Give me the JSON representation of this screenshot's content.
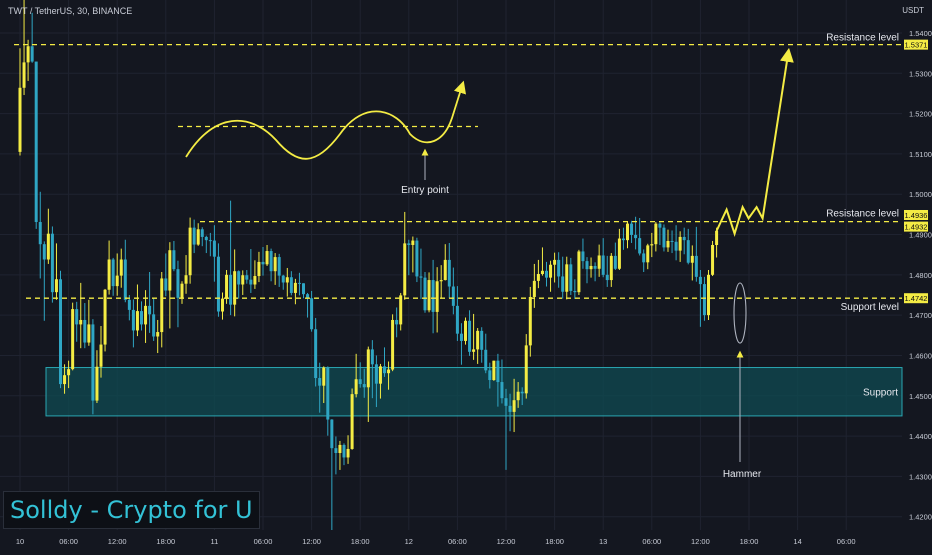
{
  "header": {
    "symbol": "TWT / TetherUS, 30, BINANCE",
    "currency": "USDT"
  },
  "brand": {
    "text": "Solldy - Crypto for U"
  },
  "colors": {
    "background": "#141720",
    "up": "#f4ec44",
    "down": "#2fa6c4",
    "annotation": "#f4ec44",
    "support_zone_fill": "#0f4b52",
    "support_zone_border": "#2aa7b2",
    "axis_text": "#c8ccd6"
  },
  "chart_data": {
    "type": "candlestick",
    "title": "TWT / TetherUS, 30, BINANCE",
    "y_axis": {
      "ticks": [
        1.42,
        1.43,
        1.44,
        1.45,
        1.46,
        1.47,
        1.48,
        1.49,
        1.5,
        1.51,
        1.52,
        1.53,
        1.54
      ],
      "tick_labels": [
        "1.4200",
        "1.4300",
        "1.4400",
        "1.4500",
        "1.4600",
        "1.4700",
        "1.4800",
        "1.4900",
        "1.5000",
        "1.5100",
        "1.5200",
        "1.5300",
        "1.5400"
      ],
      "range": [
        1.4167,
        1.5447
      ]
    },
    "x_axis": {
      "tick_labels": [
        "10",
        "06:00",
        "12:00",
        "18:00",
        "11",
        "06:00",
        "12:00",
        "18:00",
        "12",
        "06:00",
        "12:00",
        "18:00",
        "13",
        "06:00",
        "12:00",
        "18:00",
        "14",
        "06:00"
      ],
      "tick_positions": [
        0,
        12,
        24,
        36,
        48,
        60,
        72,
        84,
        96,
        108,
        120,
        132,
        144,
        156,
        168,
        180,
        192,
        204
      ],
      "unit": "30-minute bars"
    },
    "price_tags": [
      {
        "value": 1.5371,
        "label": "1.5371"
      },
      {
        "value": 1.4936,
        "label": "1.4936"
      },
      {
        "value": 1.4932,
        "label": "1.4932"
      },
      {
        "value": 1.4742,
        "label": "1.4742"
      }
    ],
    "levels": [
      {
        "label": "Resistance level",
        "value": 1.5371
      },
      {
        "label": "Resistance level",
        "value": 1.4932
      },
      {
        "label": "Support level",
        "value": 1.4742
      }
    ],
    "support_zone": {
      "label": "Support",
      "from": 1.445,
      "to": 1.457
    },
    "annotations": [
      {
        "label": "Entry point"
      },
      {
        "label": "Hammer"
      }
    ],
    "candles": [
      [
        1.5105,
        1.5362,
        1.5096,
        1.5264
      ],
      [
        1.5264,
        1.5486,
        1.5246,
        1.5327
      ],
      [
        1.5327,
        1.5383,
        1.5281,
        1.5367
      ],
      [
        1.5367,
        1.545,
        1.5326,
        1.5329
      ],
      [
        1.5329,
        1.5329,
        1.4914,
        1.4931
      ],
      [
        1.4931,
        1.5006,
        1.4791,
        1.4876
      ],
      [
        1.4876,
        1.4883,
        1.4686,
        1.4838
      ],
      [
        1.4838,
        1.4964,
        1.4827,
        1.4902
      ],
      [
        1.4902,
        1.492,
        1.4731,
        1.4757
      ],
      [
        1.4757,
        1.4878,
        1.4738,
        1.4789
      ],
      [
        1.4789,
        1.481,
        1.4519,
        1.4529
      ],
      [
        1.4529,
        1.4578,
        1.4505,
        1.4551
      ],
      [
        1.4551,
        1.4587,
        1.4519,
        1.4566
      ],
      [
        1.4566,
        1.4731,
        1.4563,
        1.4715
      ],
      [
        1.4715,
        1.4733,
        1.4634,
        1.4677
      ],
      [
        1.4677,
        1.478,
        1.4618,
        1.4688
      ],
      [
        1.4688,
        1.473,
        1.4618,
        1.4632
      ],
      [
        1.4632,
        1.4738,
        1.4624,
        1.4677
      ],
      [
        1.4677,
        1.469,
        1.4454,
        1.4488
      ],
      [
        1.4488,
        1.4613,
        1.4482,
        1.4572
      ],
      [
        1.4572,
        1.4673,
        1.4545,
        1.4627
      ],
      [
        1.4627,
        1.4765,
        1.461,
        1.4763
      ],
      [
        1.4763,
        1.4885,
        1.4751,
        1.4838
      ],
      [
        1.4838,
        1.4842,
        1.4748,
        1.4772
      ],
      [
        1.4772,
        1.4853,
        1.4748,
        1.4798
      ],
      [
        1.4798,
        1.4865,
        1.4768,
        1.4838
      ],
      [
        1.4838,
        1.4887,
        1.4732,
        1.4738
      ],
      [
        1.4738,
        1.475,
        1.4687,
        1.4713
      ],
      [
        1.4713,
        1.4739,
        1.462,
        1.4662
      ],
      [
        1.4662,
        1.4776,
        1.4648,
        1.471
      ],
      [
        1.471,
        1.4734,
        1.4662,
        1.4677
      ],
      [
        1.4677,
        1.4762,
        1.4631,
        1.4723
      ],
      [
        1.4723,
        1.4807,
        1.4656,
        1.4702
      ],
      [
        1.4702,
        1.4741,
        1.4636,
        1.4647
      ],
      [
        1.4647,
        1.4688,
        1.4606,
        1.4658
      ],
      [
        1.4658,
        1.4807,
        1.462,
        1.4791
      ],
      [
        1.4791,
        1.4853,
        1.4747,
        1.4761
      ],
      [
        1.4761,
        1.4881,
        1.4667,
        1.4861
      ],
      [
        1.4861,
        1.4884,
        1.4809,
        1.4814
      ],
      [
        1.4814,
        1.4835,
        1.467,
        1.4743
      ],
      [
        1.4743,
        1.4784,
        1.4728,
        1.4778
      ],
      [
        1.4778,
        1.4849,
        1.4753,
        1.4799
      ],
      [
        1.4799,
        1.4942,
        1.4778,
        1.4917
      ],
      [
        1.4917,
        1.4937,
        1.4854,
        1.4875
      ],
      [
        1.4875,
        1.4928,
        1.4872,
        1.4913
      ],
      [
        1.4913,
        1.4918,
        1.4871,
        1.4894
      ],
      [
        1.4894,
        1.4897,
        1.4854,
        1.4886
      ],
      [
        1.4886,
        1.4904,
        1.4846,
        1.4885
      ],
      [
        1.4885,
        1.4923,
        1.4783,
        1.4845
      ],
      [
        1.4845,
        1.4878,
        1.4696,
        1.4709
      ],
      [
        1.4709,
        1.4756,
        1.4689,
        1.4741
      ],
      [
        1.4741,
        1.4812,
        1.4728,
        1.48
      ],
      [
        1.48,
        1.4984,
        1.47,
        1.4726
      ],
      [
        1.4726,
        1.4863,
        1.4697,
        1.4809
      ],
      [
        1.4809,
        1.4811,
        1.4741,
        1.4776
      ],
      [
        1.4776,
        1.4811,
        1.475,
        1.4799
      ],
      [
        1.4799,
        1.4812,
        1.4778,
        1.4788
      ],
      [
        1.4788,
        1.4864,
        1.4755,
        1.4776
      ],
      [
        1.4776,
        1.4836,
        1.4765,
        1.4797
      ],
      [
        1.4797,
        1.4857,
        1.4782,
        1.4832
      ],
      [
        1.4832,
        1.4869,
        1.4798,
        1.4826
      ],
      [
        1.4826,
        1.4874,
        1.4822,
        1.4859
      ],
      [
        1.4859,
        1.4865,
        1.4784,
        1.4809
      ],
      [
        1.4809,
        1.4854,
        1.4775,
        1.4844
      ],
      [
        1.4844,
        1.4852,
        1.477,
        1.4798
      ],
      [
        1.4798,
        1.48,
        1.4763,
        1.4781
      ],
      [
        1.4781,
        1.4817,
        1.4746,
        1.4794
      ],
      [
        1.4794,
        1.4809,
        1.4749,
        1.4755
      ],
      [
        1.4755,
        1.479,
        1.4727,
        1.478
      ],
      [
        1.478,
        1.4805,
        1.4749,
        1.4779
      ],
      [
        1.4779,
        1.4779,
        1.4742,
        1.4752
      ],
      [
        1.4752,
        1.4755,
        1.4694,
        1.4742
      ],
      [
        1.4742,
        1.476,
        1.4659,
        1.4665
      ],
      [
        1.4665,
        1.4693,
        1.4523,
        1.4544
      ],
      [
        1.4544,
        1.4582,
        1.4458,
        1.4525
      ],
      [
        1.4525,
        1.4573,
        1.4482,
        1.457
      ],
      [
        1.457,
        1.4573,
        1.4401,
        1.4441
      ],
      [
        1.4441,
        1.4442,
        1.4167,
        1.437
      ],
      [
        1.437,
        1.4399,
        1.4305,
        1.4358
      ],
      [
        1.4358,
        1.4388,
        1.4316,
        1.4378
      ],
      [
        1.4378,
        1.4382,
        1.4328,
        1.4347
      ],
      [
        1.4347,
        1.4402,
        1.4331,
        1.4368
      ],
      [
        1.4368,
        1.4518,
        1.4366,
        1.4504
      ],
      [
        1.4504,
        1.4604,
        1.4496,
        1.4541
      ],
      [
        1.4541,
        1.4583,
        1.452,
        1.4529
      ],
      [
        1.4529,
        1.4567,
        1.4495,
        1.4521
      ],
      [
        1.4521,
        1.4622,
        1.4435,
        1.4615
      ],
      [
        1.4615,
        1.4638,
        1.4494,
        1.4578
      ],
      [
        1.4578,
        1.46,
        1.4472,
        1.453
      ],
      [
        1.453,
        1.4579,
        1.4493,
        1.4573
      ],
      [
        1.4573,
        1.462,
        1.4547,
        1.4556
      ],
      [
        1.4556,
        1.4585,
        1.4515,
        1.4565
      ],
      [
        1.4565,
        1.4702,
        1.4561,
        1.4688
      ],
      [
        1.4688,
        1.4719,
        1.4645,
        1.4677
      ],
      [
        1.4677,
        1.4755,
        1.4662,
        1.4749
      ],
      [
        1.4749,
        1.4956,
        1.4738,
        1.4878
      ],
      [
        1.4878,
        1.4887,
        1.4799,
        1.4874
      ],
      [
        1.4874,
        1.4895,
        1.4806,
        1.4885
      ],
      [
        1.4885,
        1.4892,
        1.4782,
        1.4796
      ],
      [
        1.4796,
        1.4865,
        1.474,
        1.4793
      ],
      [
        1.4793,
        1.4807,
        1.4706,
        1.4712
      ],
      [
        1.4712,
        1.4806,
        1.4707,
        1.4787
      ],
      [
        1.4787,
        1.4837,
        1.4655,
        1.4708
      ],
      [
        1.4708,
        1.4819,
        1.4657,
        1.4784
      ],
      [
        1.4784,
        1.4824,
        1.4741,
        1.4787
      ],
      [
        1.4787,
        1.4876,
        1.4786,
        1.4837
      ],
      [
        1.4837,
        1.4879,
        1.4742,
        1.4771
      ],
      [
        1.4771,
        1.4818,
        1.4702,
        1.4723
      ],
      [
        1.4723,
        1.4772,
        1.4636,
        1.4654
      ],
      [
        1.4654,
        1.468,
        1.4577,
        1.4636
      ],
      [
        1.4636,
        1.4694,
        1.4627,
        1.4686
      ],
      [
        1.4686,
        1.4712,
        1.4599,
        1.4609
      ],
      [
        1.4609,
        1.4703,
        1.4589,
        1.4615
      ],
      [
        1.4615,
        1.4668,
        1.4579,
        1.4661
      ],
      [
        1.4661,
        1.467,
        1.4582,
        1.4614
      ],
      [
        1.4614,
        1.4654,
        1.4556,
        1.4563
      ],
      [
        1.4563,
        1.4582,
        1.4518,
        1.4539
      ],
      [
        1.4539,
        1.4587,
        1.4537,
        1.4587
      ],
      [
        1.4587,
        1.4604,
        1.4473,
        1.4534
      ],
      [
        1.4534,
        1.459,
        1.4481,
        1.4494
      ],
      [
        1.4494,
        1.4517,
        1.4316,
        1.4475
      ],
      [
        1.4475,
        1.4505,
        1.4412,
        1.446
      ],
      [
        1.446,
        1.4542,
        1.441,
        1.4489
      ],
      [
        1.4489,
        1.4534,
        1.447,
        1.451
      ],
      [
        1.451,
        1.4521,
        1.4477,
        1.4506
      ],
      [
        1.4506,
        1.4653,
        1.4493,
        1.4625
      ],
      [
        1.4625,
        1.477,
        1.4597,
        1.4745
      ],
      [
        1.4745,
        1.4827,
        1.4718,
        1.4785
      ],
      [
        1.4785,
        1.4837,
        1.4767,
        1.4802
      ],
      [
        1.4802,
        1.4868,
        1.4798,
        1.481
      ],
      [
        1.481,
        1.4832,
        1.4771,
        1.4793
      ],
      [
        1.4793,
        1.4835,
        1.4758,
        1.4825
      ],
      [
        1.4825,
        1.4855,
        1.4781,
        1.4837
      ],
      [
        1.4837,
        1.4856,
        1.4768,
        1.4796
      ],
      [
        1.4796,
        1.4845,
        1.4741,
        1.4758
      ],
      [
        1.4758,
        1.4845,
        1.4739,
        1.4826
      ],
      [
        1.4826,
        1.4842,
        1.475,
        1.476
      ],
      [
        1.476,
        1.4789,
        1.474,
        1.4757
      ],
      [
        1.4757,
        1.4862,
        1.475,
        1.4858
      ],
      [
        1.4858,
        1.489,
        1.4815,
        1.4834
      ],
      [
        1.4834,
        1.4844,
        1.4779,
        1.4814
      ],
      [
        1.4814,
        1.4843,
        1.4793,
        1.4822
      ],
      [
        1.4822,
        1.4831,
        1.4784,
        1.4815
      ],
      [
        1.4815,
        1.4875,
        1.4795,
        1.4848
      ],
      [
        1.4848,
        1.4891,
        1.4794,
        1.48
      ],
      [
        1.48,
        1.4847,
        1.477,
        1.4787
      ],
      [
        1.4787,
        1.4854,
        1.477,
        1.4847
      ],
      [
        1.4847,
        1.488,
        1.4812,
        1.4815
      ],
      [
        1.4815,
        1.4914,
        1.4812,
        1.489
      ],
      [
        1.489,
        1.4917,
        1.4862,
        1.4886
      ],
      [
        1.4886,
        1.4933,
        1.4866,
        1.4927
      ],
      [
        1.4927,
        1.4934,
        1.4879,
        1.4899
      ],
      [
        1.4899,
        1.4944,
        1.4863,
        1.4891
      ],
      [
        1.4891,
        1.4941,
        1.4848,
        1.4853
      ],
      [
        1.4853,
        1.4863,
        1.4807,
        1.4831
      ],
      [
        1.4831,
        1.4877,
        1.4814,
        1.4873
      ],
      [
        1.4873,
        1.4904,
        1.4844,
        1.4876
      ],
      [
        1.4876,
        1.4931,
        1.4858,
        1.4927
      ],
      [
        1.4927,
        1.493,
        1.4874,
        1.4917
      ],
      [
        1.4917,
        1.4925,
        1.4858,
        1.4868
      ],
      [
        1.4868,
        1.4912,
        1.4857,
        1.4884
      ],
      [
        1.4884,
        1.491,
        1.4854,
        1.4882
      ],
      [
        1.4882,
        1.4923,
        1.4836,
        1.486
      ],
      [
        1.486,
        1.4908,
        1.4832,
        1.4894
      ],
      [
        1.4894,
        1.4917,
        1.4851,
        1.4886
      ],
      [
        1.4886,
        1.4914,
        1.4826,
        1.483
      ],
      [
        1.483,
        1.4873,
        1.4786,
        1.4847
      ],
      [
        1.4847,
        1.4919,
        1.4783,
        1.4795
      ],
      [
        1.4795,
        1.4812,
        1.4671,
        1.4777
      ],
      [
        1.4777,
        1.4795,
        1.4686,
        1.47
      ],
      [
        1.47,
        1.4812,
        1.4688,
        1.48
      ],
      [
        1.48,
        1.4884,
        1.4797,
        1.4874
      ],
      [
        1.4874,
        1.4917,
        1.4843,
        1.4909
      ]
    ],
    "projection": [
      [
        1.4909,
        1.4962,
        1.4902
      ],
      [
        1.4936,
        1.4962,
        1.4968,
        1.494
      ],
      [
        1.494,
        1.5371
      ]
    ]
  }
}
